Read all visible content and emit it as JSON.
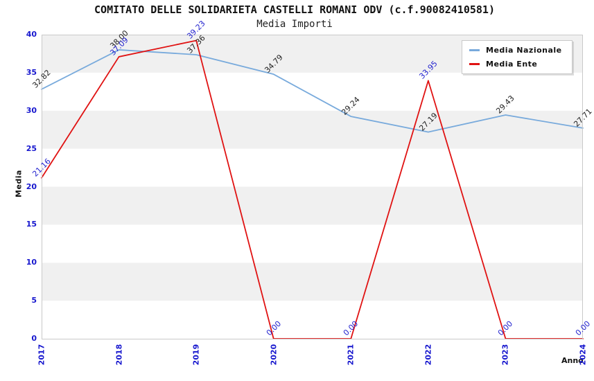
{
  "chart": {
    "title": "COMITATO DELLE SOLIDARIETA CASTELLI ROMANI ODV (c.f.90082410581)",
    "subtitle": "Media Importi",
    "xlabel": "Anno",
    "ylabel": "Media"
  },
  "chart_data": {
    "type": "line",
    "title": "COMITATO DELLE SOLIDARIETA CASTELLI ROMANI ODV (c.f.90082410581)",
    "subtitle": "Media Importi",
    "xlabel": "Anno",
    "ylabel": "Media",
    "categories": [
      "2017",
      "2018",
      "2019",
      "2020",
      "2021",
      "2022",
      "2023",
      "2024"
    ],
    "series": [
      {
        "name": "Media Nazionale",
        "color": "#78aadc",
        "label_color": "#222222",
        "values": [
          32.82,
          38.0,
          37.36,
          34.79,
          29.24,
          27.19,
          29.43,
          27.71
        ]
      },
      {
        "name": "Media Ente",
        "color": "#e01212",
        "label_color": "#2323cf",
        "values": [
          21.16,
          37.09,
          39.23,
          0.0,
          0.0,
          33.95,
          0.0,
          0.0
        ]
      }
    ],
    "ylim": [
      0,
      40
    ],
    "yticks": [
      0,
      5,
      10,
      15,
      20,
      25,
      30,
      35,
      40
    ],
    "ytick_step": 5,
    "value_label_decimals": 2,
    "grid": "alternating-bands",
    "band_colors": [
      "#ffffff",
      "#f0f0f0"
    ],
    "plot_border_color": "#c9c9c9",
    "axis_tick_color": "#1717ce",
    "legend_position": "top-right"
  }
}
